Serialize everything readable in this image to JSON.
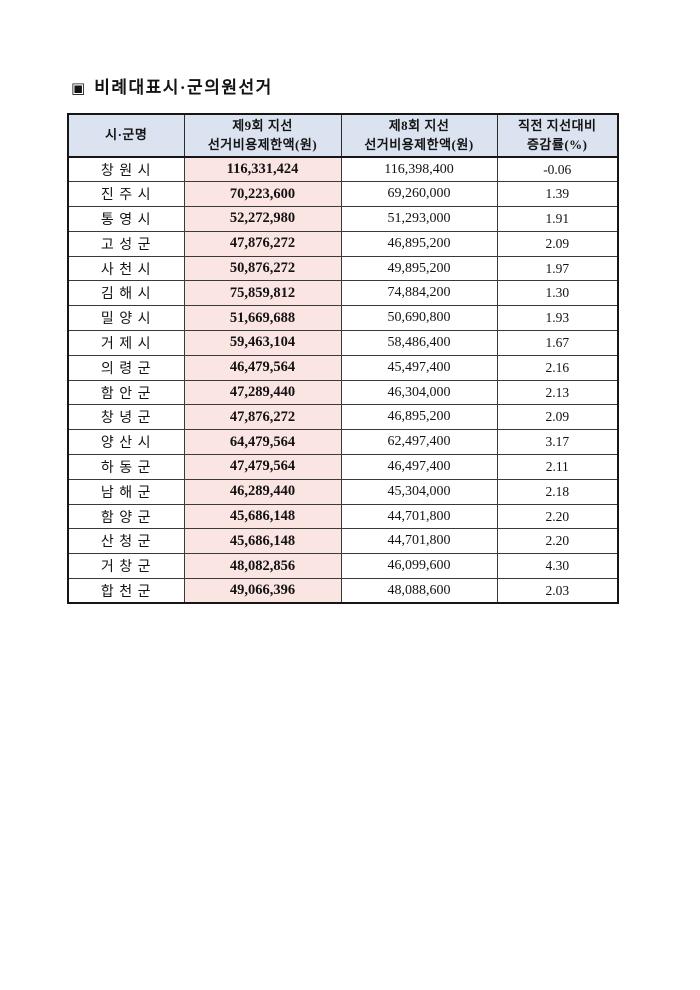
{
  "title": {
    "bullet": "▣",
    "text": "비례대표시·군의원선거"
  },
  "colors": {
    "header_bg": "#dce3f0",
    "highlight_bg": "#fbe5e3",
    "border": "#161616",
    "text": "#131313"
  },
  "table": {
    "headers": [
      {
        "line1": "시·군명",
        "line2": ""
      },
      {
        "line1": "제9회 지선",
        "line2": "선거비용제한액(원)"
      },
      {
        "line1": "제8회 지선",
        "line2": "선거비용제한액(원)"
      },
      {
        "line1": "직전 지선대비",
        "line2": "증감률(%)"
      }
    ],
    "rows": [
      {
        "name": "창 원 시",
        "limit9": "116,331,424",
        "limit8": "116,398,400",
        "change": "-0.06"
      },
      {
        "name": "진 주 시",
        "limit9": "70,223,600",
        "limit8": "69,260,000",
        "change": "1.39"
      },
      {
        "name": "통 영 시",
        "limit9": "52,272,980",
        "limit8": "51,293,000",
        "change": "1.91"
      },
      {
        "name": "고 성 군",
        "limit9": "47,876,272",
        "limit8": "46,895,200",
        "change": "2.09"
      },
      {
        "name": "사 천 시",
        "limit9": "50,876,272",
        "limit8": "49,895,200",
        "change": "1.97"
      },
      {
        "name": "김 해 시",
        "limit9": "75,859,812",
        "limit8": "74,884,200",
        "change": "1.30"
      },
      {
        "name": "밀 양 시",
        "limit9": "51,669,688",
        "limit8": "50,690,800",
        "change": "1.93"
      },
      {
        "name": "거 제 시",
        "limit9": "59,463,104",
        "limit8": "58,486,400",
        "change": "1.67"
      },
      {
        "name": "의 령 군",
        "limit9": "46,479,564",
        "limit8": "45,497,400",
        "change": "2.16"
      },
      {
        "name": "함 안 군",
        "limit9": "47,289,440",
        "limit8": "46,304,000",
        "change": "2.13"
      },
      {
        "name": "창 녕 군",
        "limit9": "47,876,272",
        "limit8": "46,895,200",
        "change": "2.09"
      },
      {
        "name": "양 산 시",
        "limit9": "64,479,564",
        "limit8": "62,497,400",
        "change": "3.17"
      },
      {
        "name": "하 동 군",
        "limit9": "47,479,564",
        "limit8": "46,497,400",
        "change": "2.11"
      },
      {
        "name": "남 해 군",
        "limit9": "46,289,440",
        "limit8": "45,304,000",
        "change": "2.18"
      },
      {
        "name": "함 양 군",
        "limit9": "45,686,148",
        "limit8": "44,701,800",
        "change": "2.20"
      },
      {
        "name": "산 청 군",
        "limit9": "45,686,148",
        "limit8": "44,701,800",
        "change": "2.20"
      },
      {
        "name": "거 창 군",
        "limit9": "48,082,856",
        "limit8": "46,099,600",
        "change": "4.30"
      },
      {
        "name": "합 천 군",
        "limit9": "49,066,396",
        "limit8": "48,088,600",
        "change": "2.03"
      }
    ]
  }
}
